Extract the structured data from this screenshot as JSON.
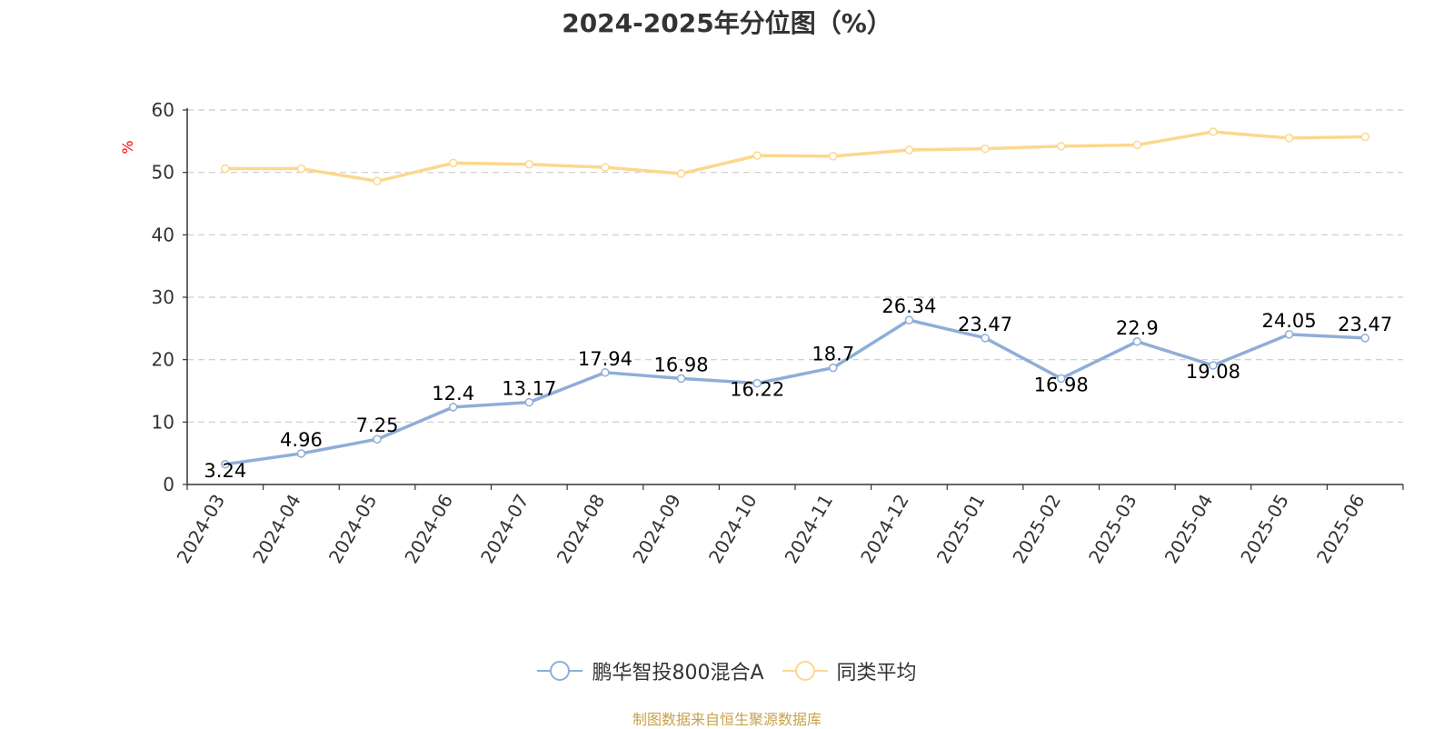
{
  "chart_data": {
    "type": "line",
    "title": "2024-2025年分位图（%）",
    "ylabel": "%",
    "ylim": [
      0,
      60
    ],
    "yticks": [
      "0",
      "10",
      "20",
      "30",
      "40",
      "50",
      "60"
    ],
    "grid": true,
    "legend_position": "bottom",
    "categories": [
      "2024-03",
      "2024-04",
      "2024-05",
      "2024-06",
      "2024-07",
      "2024-08",
      "2024-09",
      "2024-10",
      "2024-11",
      "2024-12",
      "2025-01",
      "2025-02",
      "2025-03",
      "2025-04",
      "2025-05",
      "2025-06"
    ],
    "series": [
      {
        "name": "鹏华智投800混合A",
        "color": "#8eaed8",
        "values": [
          3.24,
          4.96,
          7.25,
          12.4,
          13.17,
          17.94,
          16.98,
          16.22,
          18.7,
          26.34,
          23.47,
          16.98,
          22.9,
          19.08,
          24.05,
          23.47
        ],
        "labels": [
          "3.24",
          "4.96",
          "7.25",
          "12.4",
          "13.17",
          "17.94",
          "16.98",
          "16.22",
          "18.7",
          "26.34",
          "23.47",
          "16.98",
          "22.9",
          "19.08",
          "24.05",
          "23.47"
        ]
      },
      {
        "name": "同类平均",
        "color": "#fbd88e",
        "values": [
          50.6,
          50.6,
          48.6,
          51.5,
          51.3,
          50.8,
          49.8,
          52.7,
          52.6,
          53.6,
          53.8,
          54.2,
          54.4,
          56.5,
          55.5,
          55.7
        ]
      }
    ]
  },
  "footer": "制图数据来自恒生聚源数据库"
}
